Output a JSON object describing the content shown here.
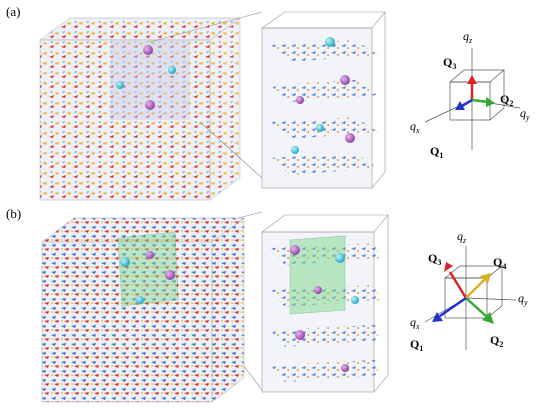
{
  "panels": [
    {
      "label": "(a)",
      "axis_labels": [
        {
          "base": "q",
          "sub": "z"
        },
        {
          "base": "Q",
          "sub": "3"
        },
        {
          "base": "Q",
          "sub": "2"
        },
        {
          "base": "q",
          "sub": "y"
        },
        {
          "base": "q",
          "sub": "x"
        },
        {
          "base": "Q",
          "sub": "1"
        }
      ]
    },
    {
      "label": "(b)",
      "axis_labels": [
        {
          "base": "q",
          "sub": "z"
        },
        {
          "base": "Q",
          "sub": "3"
        },
        {
          "base": "Q",
          "sub": "4"
        },
        {
          "base": "q",
          "sub": "y"
        },
        {
          "base": "q",
          "sub": "x"
        },
        {
          "base": "Q",
          "sub": "1"
        },
        {
          "base": "Q",
          "sub": "2"
        }
      ]
    }
  ]
}
